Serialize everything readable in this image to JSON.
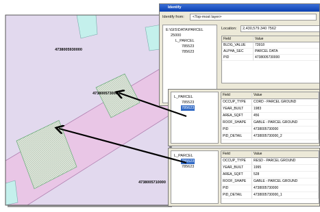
{
  "map": {
    "labels": [
      "4738005930000",
      "4738005730000",
      "4738005710000"
    ]
  },
  "identify_window": {
    "title": "Identify",
    "identify_from_label": "Identify from:",
    "identify_from_value": "<Top-most layer>",
    "tree": [
      "E:\\GIS\\DATA\\PARCEL",
      "25000",
      "L_PARCEL",
      "785523",
      "785623"
    ],
    "location_label": "Location:",
    "location_value": "2,430,579.340 7562",
    "table": {
      "headers": [
        "Field",
        "Value"
      ],
      "rows": [
        [
          "BLDG_VALUE",
          "73918"
        ],
        [
          "ALPHA_SEC",
          "PARCEL DATA"
        ],
        [
          "PID",
          "4738005730000"
        ]
      ]
    }
  },
  "panels": [
    {
      "tree": [
        "L_PARCEL",
        "785523",
        "785623"
      ],
      "selected": 2,
      "table": {
        "headers": [
          "Field",
          "Value"
        ],
        "rows": [
          [
            "OCCUP_TYPE",
            "CORD - PARCEL GROUND"
          ],
          [
            "YEAR_BUILT",
            "1983"
          ],
          [
            "AREA_SQFT",
            "456"
          ],
          [
            "ROOF_SHAPE",
            "GABLE - PARCEL GROUND"
          ],
          [
            "PID",
            "4738005730000"
          ],
          [
            "PID_DETAIL",
            "4738005730000_2"
          ]
        ]
      }
    },
    {
      "tree": [
        "L_PARCEL",
        "785523",
        "785623"
      ],
      "selected": 1,
      "table": {
        "headers": [
          "Field",
          "Value"
        ],
        "rows": [
          [
            "OCCUP_TYPE",
            "RESD - PARCEL GROUND"
          ],
          [
            "YEAR_BUILT",
            "1995"
          ],
          [
            "AREA_SQFT",
            "528"
          ],
          [
            "ROOF_SHAPE",
            "GABLE - PARCEL GROUND"
          ],
          [
            "PID",
            "4738005730000"
          ],
          [
            "PID_DETAIL",
            "4738005730000_1"
          ]
        ]
      }
    }
  ]
}
